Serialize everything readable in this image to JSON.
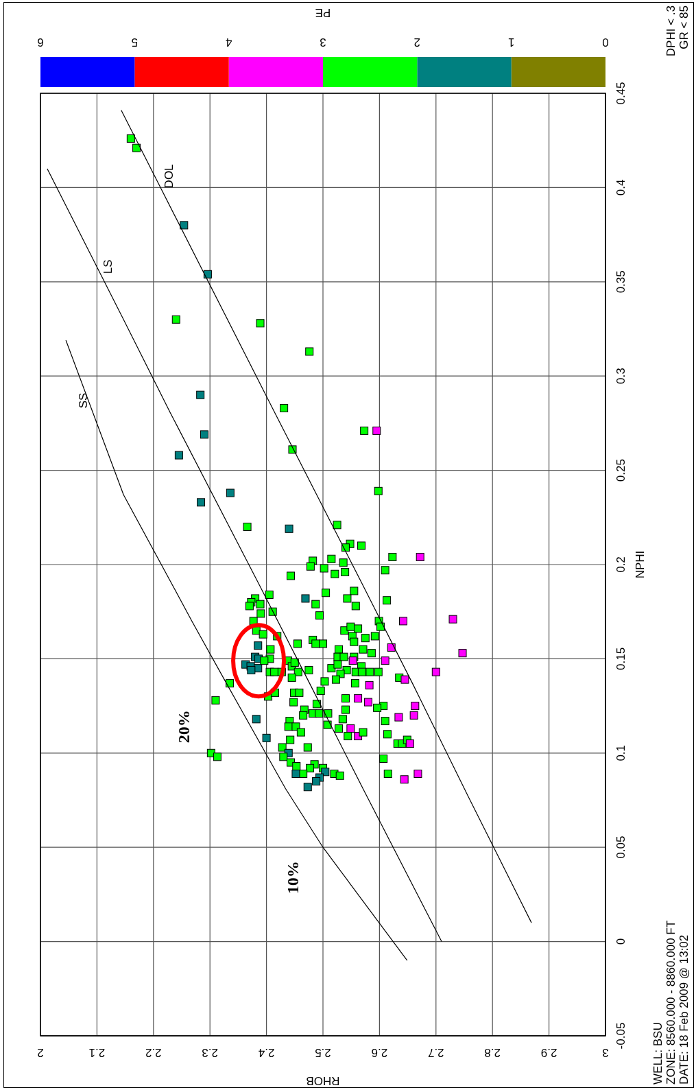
{
  "chart_data": {
    "type": "scatter",
    "xlabel": "RHOB",
    "ylabel": "NPHI",
    "clabel": "PE",
    "xlim": [
      2,
      3
    ],
    "xticks": [
      2,
      2.1,
      2.2,
      2.3,
      2.4,
      2.5,
      2.6,
      2.7,
      2.8,
      2.9,
      3
    ],
    "ylim": [
      -0.05,
      0.45
    ],
    "yticks": [
      -0.05,
      0,
      0.05,
      0.1,
      0.15,
      0.2,
      0.25,
      0.3,
      0.35,
      0.4,
      0.45
    ],
    "clim": [
      0,
      6
    ],
    "cticks": [
      0,
      1,
      2,
      3,
      4,
      5,
      6
    ],
    "grid": true,
    "marker": "square",
    "annotations": [
      "SS",
      "LS",
      "DOL",
      "20%",
      "10%",
      "WELL: BSU",
      "ZONE: 8560.000 - 8860.000 FT",
      "DATE: 18 Feb 2009 @ 13:02",
      "DPHI < .3",
      "GR < 85"
    ],
    "series": [
      {
        "type": "scatter",
        "values": [
          0.426,
          0.421,
          0.38,
          0.354,
          0.33,
          0.328,
          0.313,
          0.29,
          0.283,
          0.269,
          0.258,
          0.271,
          0.271,
          0.261,
          0.239,
          0.238,
          0.233,
          0.22,
          0.219,
          0.221,
          0.211,
          0.209,
          0.21,
          0.204,
          0.204,
          0.202,
          0.203,
          0.201,
          0.199,
          0.198,
          0.196,
          0.197,
          0.195,
          0.194,
          0.184,
          0.182,
          0.182,
          0.18,
          0.179,
          0.178,
          0.174,
          0.175,
          0.179,
          0.185,
          0.173,
          0.186,
          0.182,
          0.178,
          0.181,
          0.17,
          0.17,
          0.167,
          0.17,
          0.171,
          0.165,
          0.167,
          0.166,
          0.162,
          0.161,
          0.162,
          0.159,
          0.165,
          0.163,
          0.162,
          0.16,
          0.158,
          0.158,
          0.158,
          0.157,
          0.155,
          0.156,
          0.153,
          0.155,
          0.155,
          0.153,
          0.151,
          0.151,
          0.151,
          0.149,
          0.149,
          0.15,
          0.151,
          0.15,
          0.147,
          0.146,
          0.145,
          0.144,
          0.149,
          0.149,
          0.146,
          0.148,
          0.143,
          0.143,
          0.143,
          0.143,
          0.144,
          0.145,
          0.147,
          0.144,
          0.146,
          0.143,
          0.143,
          0.143,
          0.143,
          0.143,
          0.14,
          0.139,
          0.142,
          0.138,
          0.139,
          0.14,
          0.137,
          0.137,
          0.136,
          0.128,
          0.13,
          0.132,
          0.132,
          0.132,
          0.133,
          0.129,
          0.129,
          0.127,
          0.125,
          0.124,
          0.125,
          0.12,
          0.119,
          0.127,
          0.123,
          0.126,
          0.12,
          0.121,
          0.121,
          0.121,
          0.123,
          0.118,
          0.117,
          0.118,
          0.117,
          0.114,
          0.114,
          0.111,
          0.115,
          0.113,
          0.113,
          0.109,
          0.111,
          0.109,
          0.11,
          0.105,
          0.105,
          0.107,
          0.105,
          0.108,
          0.107,
          0.103,
          0.103,
          0.1,
          0.098,
          0.1,
          0.098,
          0.095,
          0.093,
          0.094,
          0.092,
          0.092,
          0.09,
          0.089,
          0.089,
          0.089,
          0.088,
          0.087,
          0.085,
          0.082,
          0.097,
          0.089,
          0.086,
          0.089
        ],
        "x": [
          2.16,
          2.17,
          2.254,
          2.296,
          2.24,
          2.389,
          2.476,
          2.283,
          2.431,
          2.29,
          2.245,
          2.573,
          2.595,
          2.446,
          2.598,
          2.336,
          2.284,
          2.366,
          2.44,
          2.525,
          2.548,
          2.54,
          2.568,
          2.623,
          2.672,
          2.482,
          2.515,
          2.536,
          2.478,
          2.502,
          2.539,
          2.61,
          2.521,
          2.443,
          2.405,
          2.469,
          2.38,
          2.373,
          2.389,
          2.37,
          2.39,
          2.411,
          2.487,
          2.505,
          2.494,
          2.555,
          2.543,
          2.558,
          2.613,
          2.377,
          2.599,
          2.602,
          2.642,
          2.73,
          2.538,
          2.549,
          2.562,
          2.552,
          2.575,
          2.592,
          2.555,
          2.382,
          2.394,
          2.419,
          2.482,
          2.455,
          2.487,
          2.5,
          2.385,
          2.407,
          2.621,
          2.747,
          2.528,
          2.571,
          2.586,
          2.526,
          2.537,
          2.555,
          2.553,
          2.61,
          2.406,
          2.38,
          2.386,
          2.363,
          2.372,
          2.385,
          2.373,
          2.396,
          2.438,
          2.445,
          2.45,
          2.406,
          2.414,
          2.427,
          2.456,
          2.475,
          2.515,
          2.526,
          2.542,
          2.568,
          2.558,
          2.569,
          2.583,
          2.598,
          2.7,
          2.635,
          2.645,
          2.531,
          2.503,
          2.523,
          2.445,
          2.335,
          2.557,
          2.582,
          2.31,
          2.403,
          2.415,
          2.449,
          2.458,
          2.496,
          2.54,
          2.562,
          2.58,
          2.607,
          2.596,
          2.663,
          2.661,
          2.634,
          2.448,
          2.467,
          2.489,
          2.465,
          2.482,
          2.493,
          2.509,
          2.54,
          2.535,
          2.61,
          2.382,
          2.441,
          2.439,
          2.452,
          2.461,
          2.508,
          2.528,
          2.549,
          2.562,
          2.571,
          2.544,
          2.614,
          2.632,
          2.64,
          2.649,
          2.654,
          2.4,
          2.442,
          2.428,
          2.473,
          2.302,
          2.313,
          2.439,
          2.43,
          2.443,
          2.453,
          2.485,
          2.477,
          2.5,
          2.504,
          2.465,
          2.452,
          2.52,
          2.53,
          2.494,
          2.488,
          2.473,
          2.607,
          2.615,
          2.644,
          2.668
        ],
        "colors": [
          "#00ff00",
          "#00ff00",
          "#008080",
          "#008080",
          "#00ff00",
          "#00ff00",
          "#00ff00",
          "#008080",
          "#00ff00",
          "#008080",
          "#008080",
          "#00ff00",
          "#ff00ff",
          "#00ff00",
          "#00ff00",
          "#008080",
          "#008080",
          "#00ff00",
          "#008080",
          "#00ff00",
          "#00ff00",
          "#00ff00",
          "#00ff00",
          "#00ff00",
          "#ff00ff",
          "#00ff00",
          "#00ff00",
          "#00ff00",
          "#00ff00",
          "#00ff00",
          "#00ff00",
          "#00ff00",
          "#00ff00",
          "#00ff00",
          "#00ff00",
          "#008080",
          "#00ff00",
          "#00ff00",
          "#00ff00",
          "#00ff00",
          "#00ff00",
          "#00ff00",
          "#00ff00",
          "#00ff00",
          "#00ff00",
          "#00ff00",
          "#00ff00",
          "#00ff00",
          "#00ff00",
          "#00ff00",
          "#00ff00",
          "#00ff00",
          "#ff00ff",
          "#ff00ff",
          "#00ff00",
          "#00ff00",
          "#00ff00",
          "#00ff00",
          "#00ff00",
          "#00ff00",
          "#00ff00",
          "#00ff00",
          "#00ff00",
          "#00ff00",
          "#00ff00",
          "#00ff00",
          "#00ff00",
          "#00ff00",
          "#008080",
          "#00ff00",
          "#ff00ff",
          "#ff00ff",
          "#00ff00",
          "#00ff00",
          "#00ff00",
          "#00ff00",
          "#00ff00",
          "#00ff00",
          "#ff00ff",
          "#ff00ff",
          "#00ff00",
          "#008080",
          "#008080",
          "#008080",
          "#008080",
          "#008080",
          "#008080",
          "#00ff00",
          "#00ff00",
          "#00ff00",
          "#00ff00",
          "#00ff00",
          "#00ff00",
          "#00ff00",
          "#00ff00",
          "#00ff00",
          "#00ff00",
          "#00ff00",
          "#00ff00",
          "#00ff00",
          "#00ff00",
          "#00ff00",
          "#00ff00",
          "#00ff00",
          "#ff00ff",
          "#00ff00",
          "#ff00ff",
          "#00ff00",
          "#00ff00",
          "#00ff00",
          "#00ff00",
          "#00ff00",
          "#00ff00",
          "#ff00ff",
          "#00ff00",
          "#00ff00",
          "#00ff00",
          "#00ff00",
          "#00ff00",
          "#00ff00",
          "#00ff00",
          "#ff00ff",
          "#ff00ff",
          "#00ff00",
          "#00ff00",
          "#ff00ff",
          "#ff00ff",
          "#ff00ff",
          "#00ff00",
          "#00ff00",
          "#00ff00",
          "#00ff00",
          "#00ff00",
          "#00ff00",
          "#00ff00",
          "#00ff00",
          "#00ff00",
          "#00ff00",
          "#008080",
          "#00ff00",
          "#00ff00",
          "#00ff00",
          "#00ff00",
          "#00ff00",
          "#00ff00",
          "#ff00ff",
          "#ff00ff",
          "#00ff00",
          "#00ff00",
          "#00ff00",
          "#00ff00",
          "#00ff00",
          "#00ff00",
          "#ff00ff",
          "#008080",
          "#00ff00",
          "#00ff00",
          "#00ff00",
          "#00ff00",
          "#00ff00",
          "#008080",
          "#00ff00",
          "#00ff00",
          "#00ff00",
          "#00ff00",
          "#00ff00",
          "#00ff00",
          "#008080",
          "#00ff00",
          "#008080",
          "#00ff00",
          "#00ff00",
          "#008080",
          "#008080",
          "#008080",
          "#00ff00",
          "#00ff00",
          "#ff00ff",
          "#ff00ff"
        ]
      },
      {
        "type": "line",
        "color": "#000000",
        "marker": "none",
        "values": [
          0.319,
          0.237,
          0.19,
          0.17,
          0.136,
          0.081,
          0.05,
          -0.01
        ],
        "x": [
          2.045,
          2.147,
          2.232,
          2.268,
          2.331,
          2.434,
          2.5,
          2.649
        ]
      },
      {
        "type": "line",
        "color": "#000000",
        "marker": "none",
        "values": [
          0.41,
          0.33,
          0.281,
          0.19,
          0.136,
          0.081,
          0.0
        ],
        "x": [
          2.012,
          2.147,
          2.229,
          2.386,
          2.478,
          2.571,
          2.71
        ]
      },
      {
        "type": "line",
        "color": "#000000",
        "marker": "none",
        "values": [
          0.441,
          0.281,
          0.19,
          0.136,
          0.077,
          0.01
        ],
        "x": [
          2.143,
          2.414,
          2.569,
          2.66,
          2.757,
          2.869
        ]
      }
    ]
  }
}
